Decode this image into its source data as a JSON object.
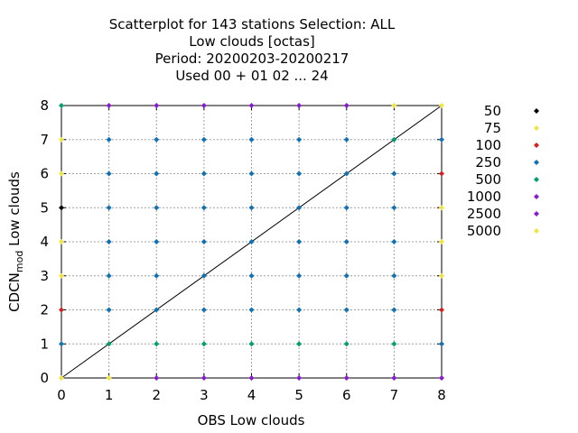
{
  "chart_data": {
    "type": "scatter",
    "title_lines": [
      "Scatterplot for  143 stations Selection: ALL",
      "Low clouds [octas]",
      "Period: 20200203-20200217",
      "Used  00 + 01 02 ... 24"
    ],
    "xlabel": "OBS Low clouds",
    "ylabel_main": "CDCN",
    "ylabel_sub": "mod",
    "ylabel_tail": " Low clouds",
    "xlim": [
      0,
      8
    ],
    "ylim": [
      0,
      8
    ],
    "xticks": [
      "0",
      "1",
      "2",
      "3",
      "4",
      "5",
      "6",
      "7",
      "8"
    ],
    "yticks": [
      "0",
      "1",
      "2",
      "3",
      "4",
      "5",
      "6",
      "7",
      "8"
    ],
    "grid": true,
    "diagonal_line": true,
    "legend_placement": "right",
    "legend": [
      {
        "label": "50",
        "color": "#000000"
      },
      {
        "label": "75",
        "color": "#f0e442"
      },
      {
        "label": "100",
        "color": "#d62020"
      },
      {
        "label": "250",
        "color": "#1072b2"
      },
      {
        "label": "500",
        "color": "#009e73"
      },
      {
        "label": "1000",
        "color": "#8a1ad0"
      },
      {
        "label": "2500",
        "color": "#8a1ad0"
      },
      {
        "label": "5000",
        "color": "#f0e442"
      }
    ],
    "points": [
      [
        0,
        8,
        "500"
      ],
      [
        1,
        8,
        "1000"
      ],
      [
        2,
        8,
        "1000"
      ],
      [
        3,
        8,
        "1000"
      ],
      [
        4,
        8,
        "1000"
      ],
      [
        5,
        8,
        "1000"
      ],
      [
        6,
        8,
        "1000"
      ],
      [
        7,
        8,
        "5000"
      ],
      [
        8,
        8,
        "5000"
      ],
      [
        0,
        7,
        "5000"
      ],
      [
        1,
        7,
        "250"
      ],
      [
        2,
        7,
        "250"
      ],
      [
        3,
        7,
        "250"
      ],
      [
        4,
        7,
        "250"
      ],
      [
        5,
        7,
        "250"
      ],
      [
        6,
        7,
        "250"
      ],
      [
        7,
        7,
        "500"
      ],
      [
        8,
        7,
        "250"
      ],
      [
        0,
        6,
        "5000"
      ],
      [
        1,
        6,
        "250"
      ],
      [
        2,
        6,
        "250"
      ],
      [
        3,
        6,
        "250"
      ],
      [
        4,
        6,
        "250"
      ],
      [
        5,
        6,
        "250"
      ],
      [
        6,
        6,
        "250"
      ],
      [
        7,
        6,
        "250"
      ],
      [
        8,
        6,
        "100"
      ],
      [
        0,
        5,
        "50"
      ],
      [
        1,
        5,
        "250"
      ],
      [
        2,
        5,
        "250"
      ],
      [
        3,
        5,
        "250"
      ],
      [
        4,
        5,
        "250"
      ],
      [
        5,
        5,
        "250"
      ],
      [
        6,
        5,
        "250"
      ],
      [
        7,
        5,
        "250"
      ],
      [
        8,
        5,
        "5000"
      ],
      [
        0,
        4,
        "5000"
      ],
      [
        1,
        4,
        "250"
      ],
      [
        2,
        4,
        "250"
      ],
      [
        3,
        4,
        "250"
      ],
      [
        4,
        4,
        "250"
      ],
      [
        5,
        4,
        "250"
      ],
      [
        6,
        4,
        "250"
      ],
      [
        7,
        4,
        "250"
      ],
      [
        8,
        4,
        "5000"
      ],
      [
        0,
        3,
        "5000"
      ],
      [
        1,
        3,
        "250"
      ],
      [
        2,
        3,
        "250"
      ],
      [
        3,
        3,
        "250"
      ],
      [
        4,
        3,
        "250"
      ],
      [
        5,
        3,
        "250"
      ],
      [
        6,
        3,
        "250"
      ],
      [
        7,
        3,
        "250"
      ],
      [
        8,
        3,
        "5000"
      ],
      [
        0,
        2,
        "100"
      ],
      [
        1,
        2,
        "250"
      ],
      [
        2,
        2,
        "250"
      ],
      [
        3,
        2,
        "250"
      ],
      [
        4,
        2,
        "250"
      ],
      [
        5,
        2,
        "250"
      ],
      [
        6,
        2,
        "250"
      ],
      [
        7,
        2,
        "250"
      ],
      [
        8,
        2,
        "100"
      ],
      [
        0,
        1,
        "250"
      ],
      [
        1,
        1,
        "500"
      ],
      [
        2,
        1,
        "500"
      ],
      [
        3,
        1,
        "500"
      ],
      [
        4,
        1,
        "500"
      ],
      [
        5,
        1,
        "500"
      ],
      [
        6,
        1,
        "500"
      ],
      [
        7,
        1,
        "500"
      ],
      [
        8,
        1,
        "250"
      ],
      [
        0,
        0,
        "5000"
      ],
      [
        1,
        0,
        "5000"
      ],
      [
        2,
        0,
        "1000"
      ],
      [
        3,
        0,
        "1000"
      ],
      [
        4,
        0,
        "1000"
      ],
      [
        5,
        0,
        "1000"
      ],
      [
        6,
        0,
        "1000"
      ],
      [
        7,
        0,
        "1000"
      ],
      [
        8,
        0,
        "1000"
      ]
    ]
  }
}
